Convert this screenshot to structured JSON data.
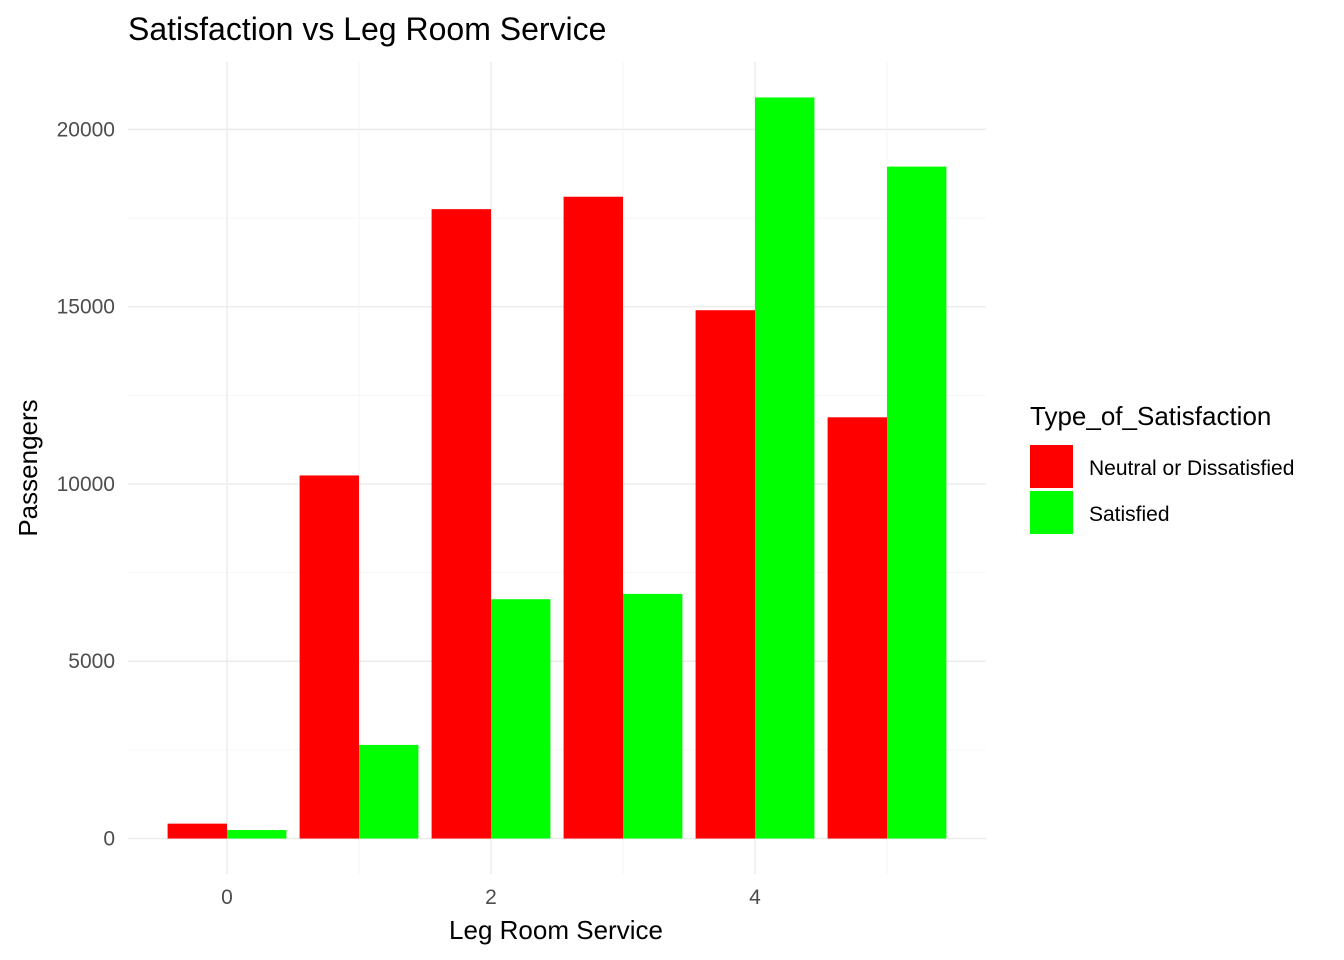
{
  "chart_data": {
    "type": "bar",
    "title": "Satisfaction vs Leg Room Service",
    "xlabel": "Leg Room Service",
    "ylabel": "Passengers",
    "x": [
      0,
      1,
      2,
      3,
      4,
      5
    ],
    "x_tick_labels": [
      "0",
      "2",
      "4"
    ],
    "x_tick_values": [
      0,
      2,
      4
    ],
    "y_tick_labels": [
      "0",
      "5000",
      "10000",
      "15000",
      "20000"
    ],
    "y_tick_values": [
      0,
      5000,
      10000,
      15000,
      20000
    ],
    "xlim": [
      -0.75,
      5.75
    ],
    "ylim": [
      -1000,
      21900
    ],
    "grid": true,
    "legend": {
      "title": "Type_of_Satisfaction",
      "position": "right"
    },
    "series": [
      {
        "name": "Neutral or Dissatisfied",
        "color": "#FF0000",
        "values": [
          420,
          10240,
          17750,
          18100,
          14900,
          11880
        ]
      },
      {
        "name": "Satisfied",
        "color": "#00FF00",
        "values": [
          240,
          2640,
          6750,
          6900,
          20900,
          18950
        ]
      }
    ]
  }
}
